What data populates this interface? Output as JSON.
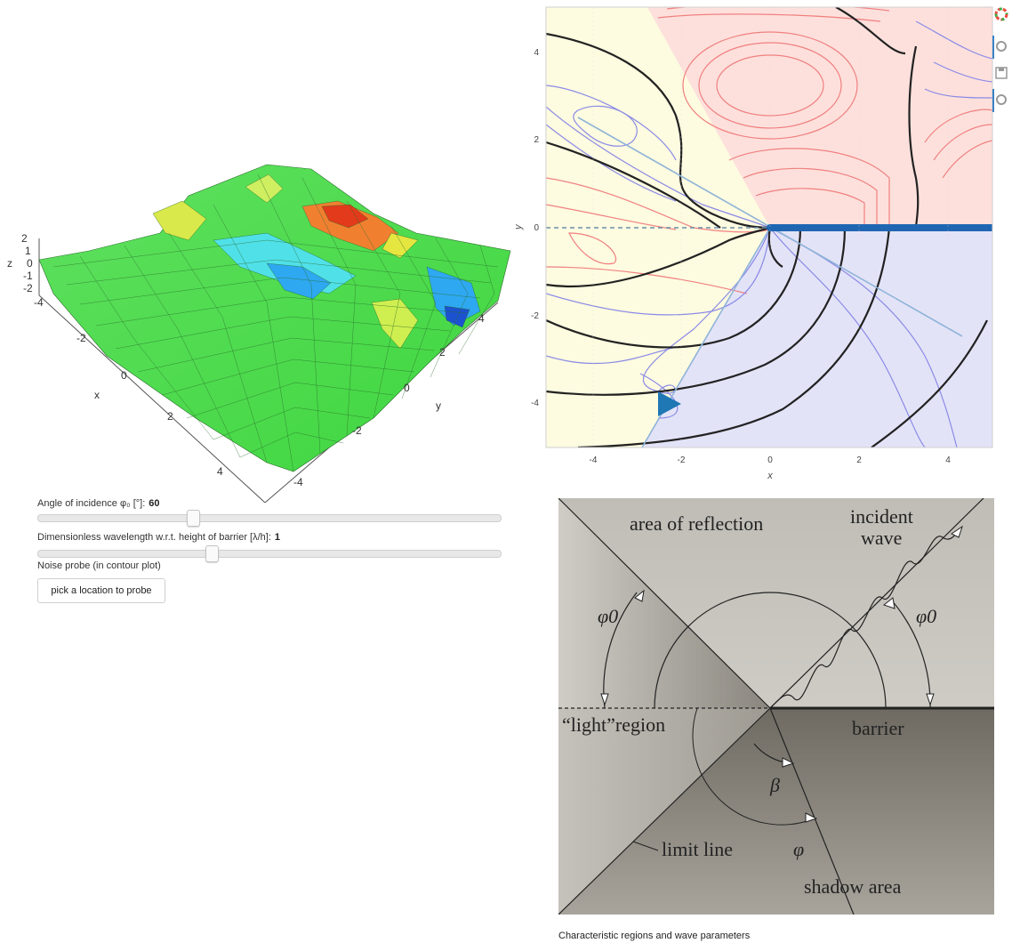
{
  "surface_plot": {
    "axis_labels": {
      "x": "x",
      "y": "y",
      "z": "z"
    },
    "z_ticks": [
      "2",
      "1",
      "0",
      "-1",
      "-2"
    ],
    "x_ticks": [
      "-4",
      "-2",
      "0",
      "2",
      "4"
    ],
    "y_ticks": [
      "4",
      "2",
      "0",
      "-2",
      "-4"
    ]
  },
  "contour_plot": {
    "xlabel": "x",
    "ylabel": "y",
    "x_ticks": [
      "-4",
      "-2",
      "0",
      "2",
      "4"
    ],
    "y_ticks": [
      "4",
      "2",
      "0",
      "-2",
      "-4"
    ],
    "colors": {
      "reflection_region": "#fde0dc",
      "light_region": "#fdfbe0",
      "shadow_region": "#e3e3f8",
      "barrier": "#1f66b2",
      "contour_zero": "#222222",
      "contour_positive": "#f08080",
      "contour_negative": "#8a8ae6",
      "marker": "#1f77b4"
    }
  },
  "toolbar": {
    "icons": [
      "bokeh-logo-icon",
      "pan-icon",
      "save-icon",
      "reset-icon"
    ]
  },
  "controls": {
    "angle": {
      "label": "Angle of incidence φ₀ [°]:",
      "value": "60",
      "fraction": 0.33
    },
    "wavelength": {
      "label": "Dimensionless wavelength w.r.t. height of barrier [λ/h]:",
      "value": "1",
      "fraction": 0.37
    },
    "probe_label": "Noise probe (in contour plot)",
    "probe_button": "pick a location to probe"
  },
  "diagram": {
    "labels": {
      "reflection": "area of reflection",
      "incident_1": "incident",
      "incident_2": "wave",
      "phi0_left": "φ0",
      "phi0_right": "φ0",
      "light_region": "“light”region",
      "barrier": "barrier",
      "beta": "β",
      "phi": "φ",
      "limit_line": "limit line",
      "shadow": "shadow area"
    }
  },
  "caption": "Characteristic regions and wave parameters"
}
